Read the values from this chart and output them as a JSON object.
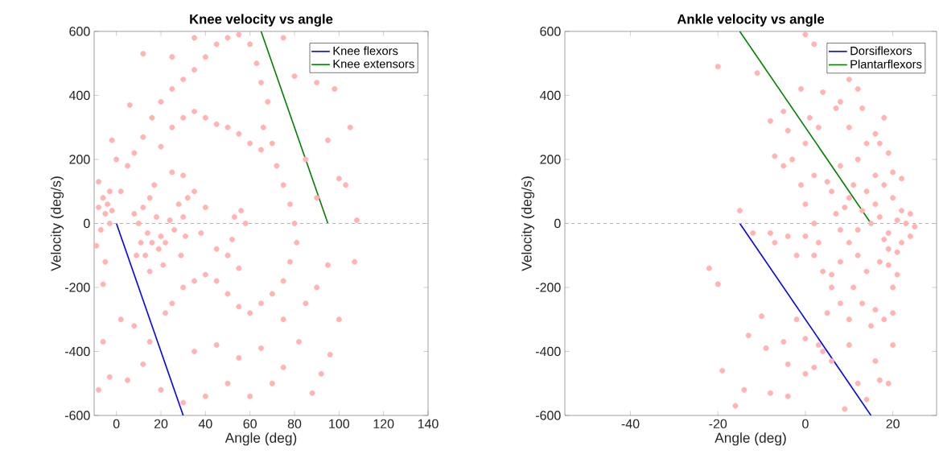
{
  "chart_data": [
    {
      "type": "scatter",
      "title": "Knee velocity vs angle",
      "xlabel": "Angle (deg)",
      "ylabel": "Velocity (deg/s)",
      "xlim": [
        -10,
        140
      ],
      "ylim": [
        -600,
        600
      ],
      "xticks": [
        0,
        20,
        40,
        60,
        80,
        100,
        120,
        140
      ],
      "yticks": [
        -600,
        -400,
        -200,
        0,
        200,
        400,
        600
      ],
      "legend": "top right",
      "ref_lines": [
        {
          "axis": "y",
          "value": 0,
          "color": "#b3b3b3",
          "line_style": "dashed"
        }
      ],
      "series": [
        {
          "color": "#ffb3b3",
          "marker": "circle",
          "x": [
            -8,
            -6,
            -5,
            -4,
            -3,
            -2,
            -7,
            -9,
            -5,
            -6,
            -8,
            -3,
            10,
            12,
            14,
            15,
            16,
            18,
            19,
            20,
            17,
            13,
            22,
            24,
            26,
            28,
            30,
            31,
            32,
            29,
            21,
            15,
            11,
            9,
            8,
            2,
            5,
            8,
            12,
            16,
            20,
            25,
            30,
            35,
            40,
            45,
            50,
            55,
            60,
            63,
            65,
            68,
            66,
            70,
            72,
            75,
            78,
            80,
            81,
            78,
            75,
            70,
            65,
            60,
            55,
            50,
            45,
            40,
            35,
            30,
            25,
            22,
            20,
            25,
            30,
            35,
            40,
            45,
            50,
            55,
            60,
            65,
            25,
            30,
            35,
            40,
            38,
            45,
            50,
            55,
            58,
            56,
            52,
            53,
            90,
            85,
            95,
            100,
            103,
            108,
            107,
            100,
            96,
            92,
            88,
            82,
            75,
            70,
            60,
            50,
            40,
            30,
            20,
            12,
            5,
            -3,
            -6,
            -8,
            2,
            8,
            15,
            35,
            45,
            55,
            65,
            75,
            85,
            90,
            95,
            105,
            98,
            90,
            80,
            75,
            35,
            25,
            12,
            6,
            0,
            -2
          ],
          "values": [
            50,
            80,
            30,
            60,
            0,
            40,
            -20,
            -70,
            -120,
            -190,
            130,
            100,
            0,
            50,
            -30,
            80,
            -60,
            20,
            -80,
            -40,
            120,
            -100,
            -60,
            10,
            -20,
            60,
            20,
            -40,
            80,
            -100,
            -130,
            -150,
            -60,
            -100,
            30,
            100,
            180,
            220,
            270,
            330,
            380,
            420,
            450,
            480,
            520,
            560,
            580,
            590,
            560,
            500,
            440,
            380,
            300,
            250,
            180,
            120,
            60,
            0,
            -60,
            -120,
            -180,
            -220,
            -250,
            -280,
            -260,
            -220,
            -180,
            -160,
            -180,
            -200,
            -250,
            -280,
            240,
            300,
            330,
            350,
            330,
            310,
            300,
            280,
            250,
            230,
            160,
            150,
            100,
            50,
            -30,
            -80,
            -100,
            -140,
            0,
            40,
            -50,
            20,
            80,
            200,
            260,
            140,
            120,
            10,
            -120,
            -300,
            -410,
            -470,
            -530,
            -370,
            -450,
            -500,
            -540,
            -500,
            -540,
            -560,
            -520,
            -440,
            -490,
            -480,
            -370,
            -520,
            -300,
            -320,
            -370,
            -400,
            -380,
            -420,
            -390,
            -300,
            -250,
            -200,
            -130,
            300,
            420,
            440,
            460,
            580,
            580,
            520,
            530,
            370,
            200,
            260
          ]
        },
        {
          "type": "line",
          "name": "Knee flexors",
          "color": "#0000ff",
          "line_style": "solid",
          "x": [
            0,
            30
          ],
          "values": [
            0,
            -600
          ]
        },
        {
          "type": "line",
          "name": "Knee extensors",
          "color": "#008000",
          "line_style": "solid",
          "x": [
            95,
            65
          ],
          "values": [
            0,
            600
          ]
        }
      ]
    },
    {
      "type": "scatter",
      "title": "Ankle velocity vs angle",
      "xlabel": "Angle (deg)",
      "ylabel": "Velocity (deg/s)",
      "xlim": [
        -55,
        30
      ],
      "ylim": [
        -600,
        600
      ],
      "xticks": [
        -40,
        -20,
        0,
        20
      ],
      "yticks": [
        -600,
        -400,
        -200,
        0,
        200,
        400,
        600
      ],
      "legend": "top right",
      "ref_lines": [
        {
          "axis": "y",
          "value": 0,
          "color": "#b3b3b3",
          "line_style": "dashed"
        }
      ],
      "series": [
        {
          "color": "#ffb3b3",
          "marker": "circle",
          "x": [
            15,
            17,
            13,
            19,
            21,
            23,
            24,
            22,
            18,
            16,
            12,
            10,
            11,
            14,
            16,
            18,
            20,
            21,
            19,
            17,
            14,
            12,
            10,
            8,
            7,
            9,
            6,
            5,
            8,
            12,
            14,
            16,
            19,
            20,
            22,
            18,
            13,
            10,
            8,
            4,
            7,
            12,
            11,
            13,
            16,
            18,
            20,
            15,
            10,
            8,
            6,
            4,
            2,
            3,
            0,
            2,
            0,
            -1,
            2,
            -3,
            -5,
            -7,
            -4,
            -8,
            -5,
            0,
            1,
            3,
            -2,
            -4,
            -7,
            -8,
            -12,
            -15,
            -20,
            -11,
            -22,
            -20,
            -10,
            -13,
            -9,
            -4,
            -5,
            -2,
            0,
            2,
            4,
            6,
            10,
            12,
            16,
            17,
            20,
            19,
            14,
            9,
            -14,
            -8,
            -4,
            -16,
            -19,
            0,
            3,
            -1,
            2,
            0,
            10,
            17,
            21,
            20,
            25,
            24,
            22,
            19,
            8,
            6,
            5
          ],
          "values": [
            0,
            20,
            40,
            -30,
            10,
            0,
            30,
            -60,
            -50,
            60,
            -20,
            80,
            120,
            100,
            150,
            120,
            80,
            -90,
            -130,
            -120,
            -150,
            -100,
            -60,
            -20,
            30,
            50,
            100,
            130,
            180,
            200,
            250,
            280,
            220,
            160,
            140,
            330,
            360,
            300,
            380,
            410,
            360,
            420,
            -200,
            -250,
            -270,
            -300,
            -280,
            -320,
            -300,
            -250,
            -200,
            -150,
            -100,
            -60,
            -40,
            0,
            60,
            120,
            150,
            200,
            180,
            210,
            290,
            320,
            350,
            250,
            330,
            300,
            -100,
            -40,
            -60,
            -30,
            -30,
            40,
            490,
            470,
            -140,
            -190,
            -290,
            -350,
            -390,
            -440,
            -370,
            -300,
            -360,
            -450,
            -400,
            -430,
            -380,
            -500,
            -430,
            -490,
            -380,
            -500,
            -550,
            -580,
            -520,
            -530,
            -540,
            -570,
            -460,
            -470,
            -380,
            420,
            560,
            590,
            450,
            250,
            -160,
            -200,
            -10,
            -40,
            40,
            -80,
            -120,
            -160,
            -280
          ]
        },
        {
          "type": "line",
          "name": "Dorsiflexors",
          "color": "#0000ff",
          "line_style": "solid",
          "x": [
            -15,
            15
          ],
          "values": [
            0,
            -600
          ]
        },
        {
          "type": "line",
          "name": "Plantarflexors",
          "color": "#008000",
          "line_style": "solid",
          "x": [
            15,
            -15
          ],
          "values": [
            0,
            600
          ]
        }
      ]
    }
  ]
}
